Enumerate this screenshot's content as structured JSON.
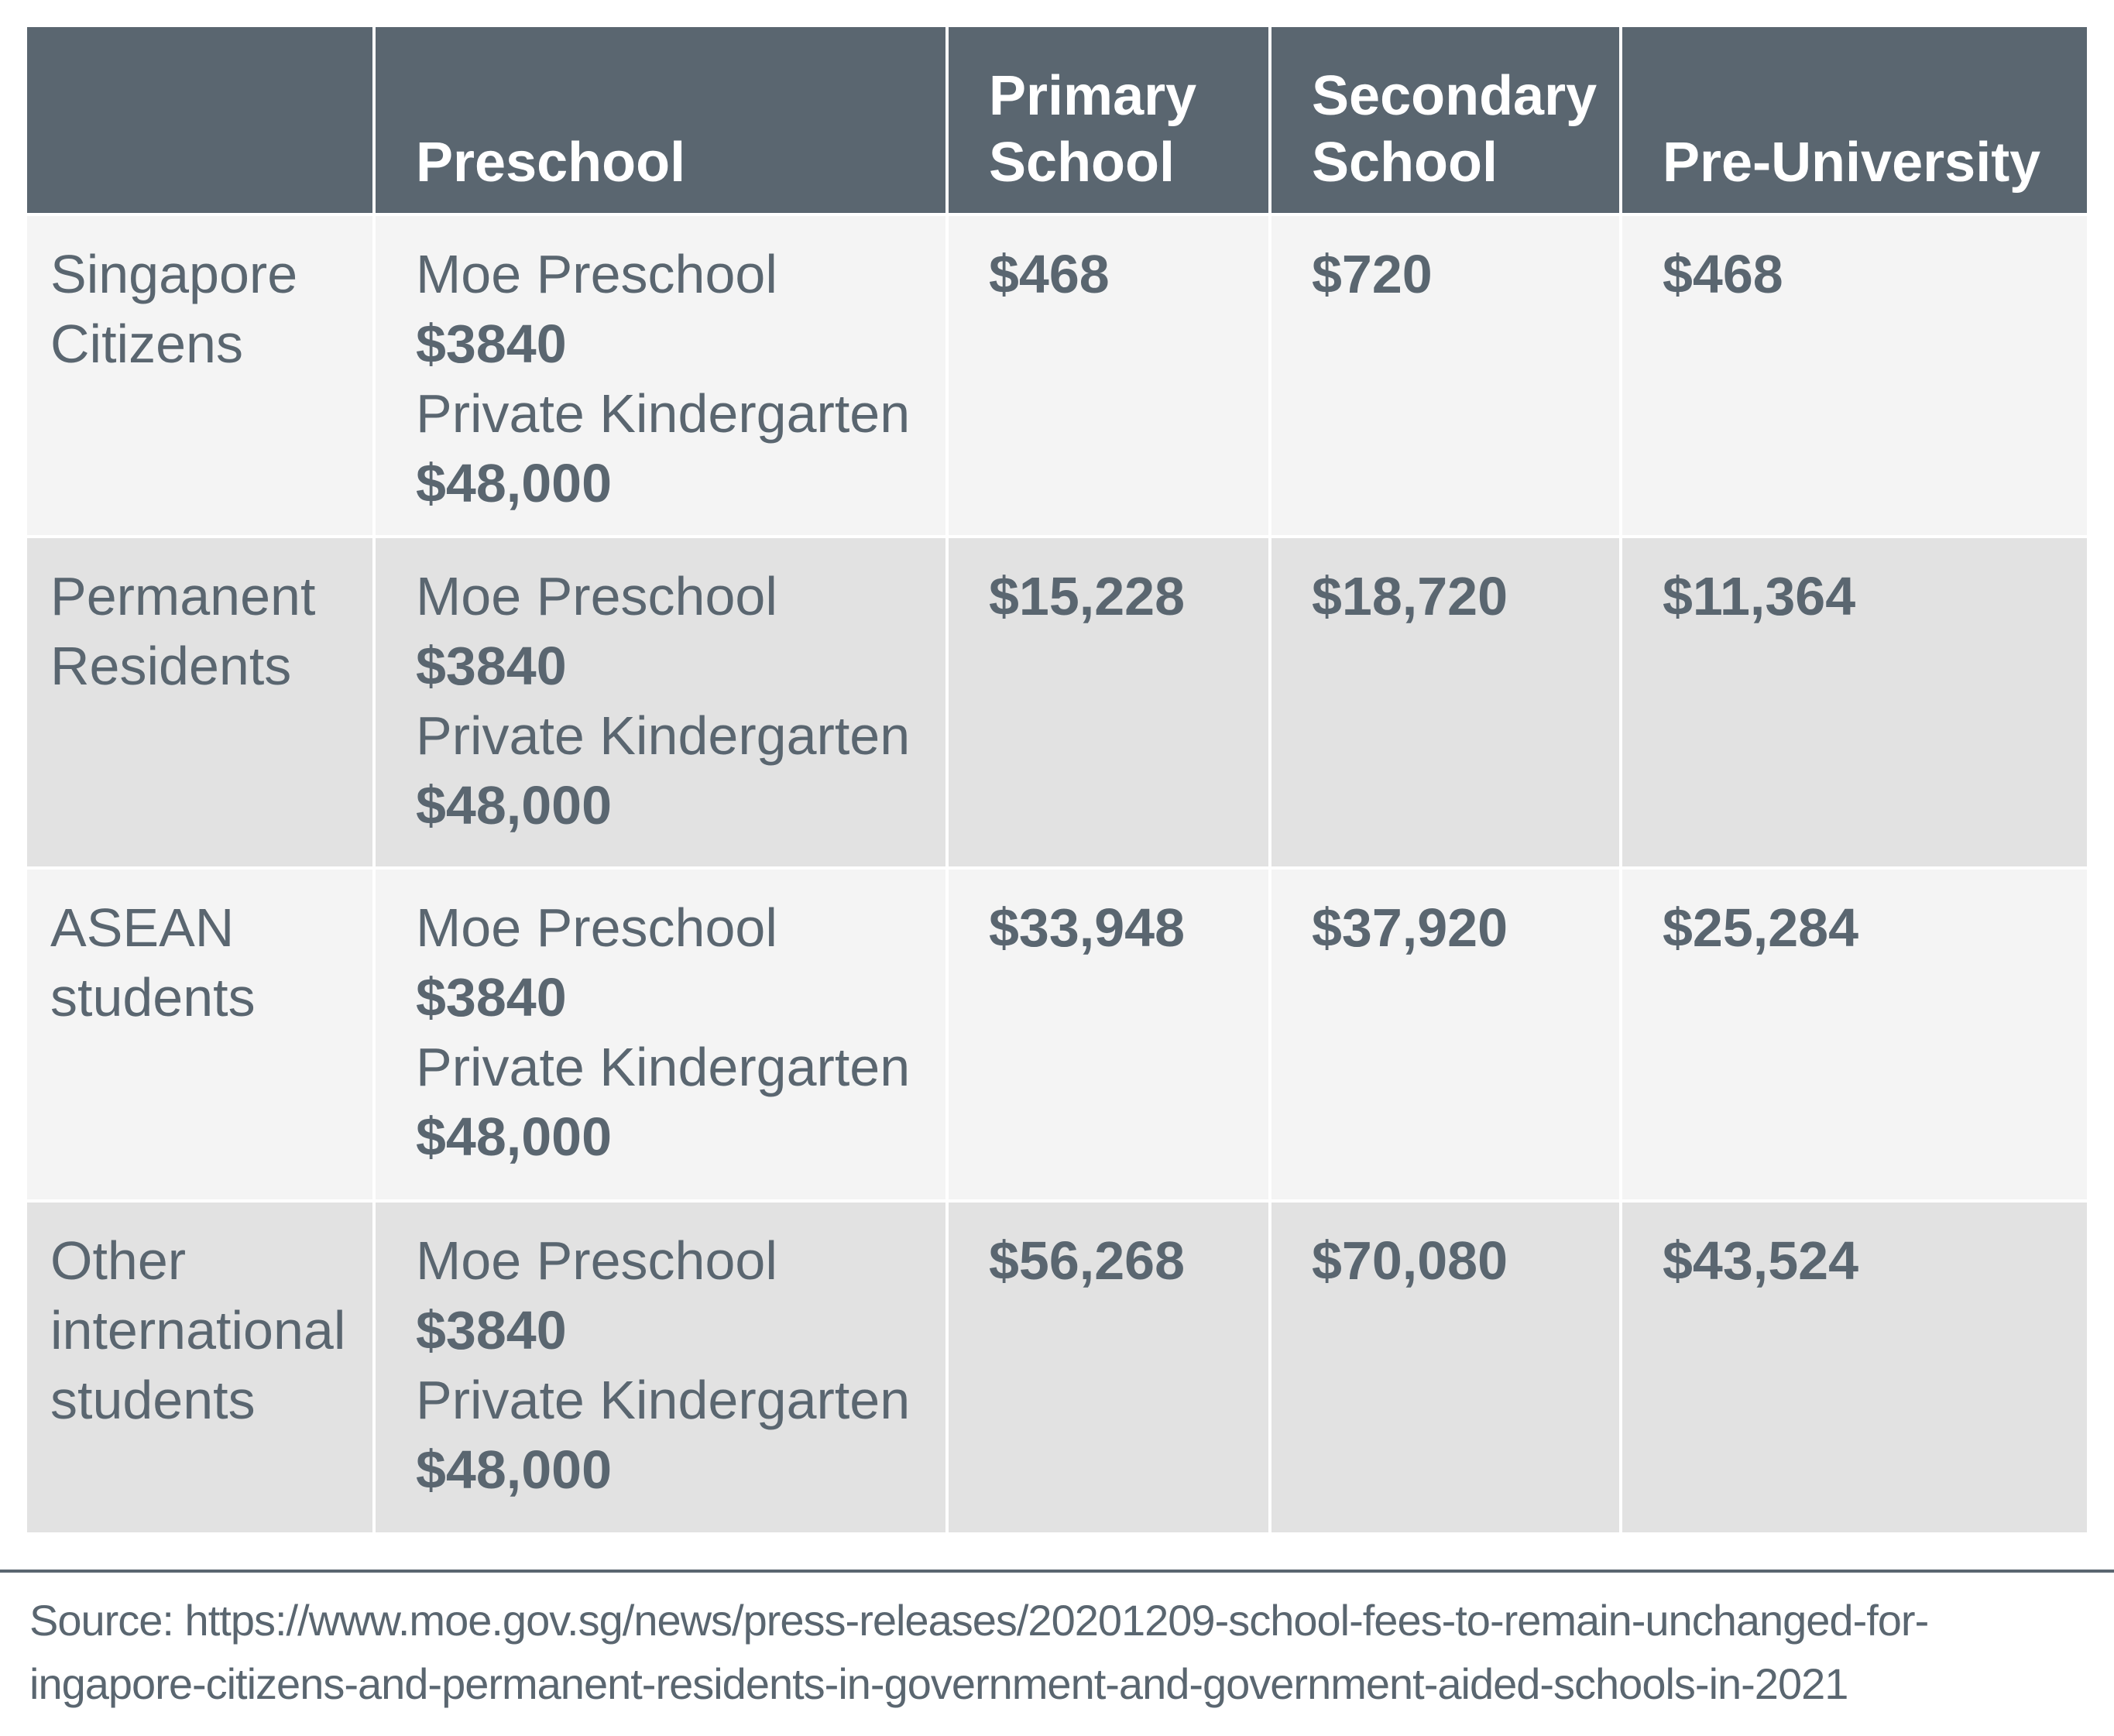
{
  "table": {
    "headers": [
      "",
      "Preschool",
      "Primary School",
      "Secondary School",
      "Pre-University"
    ],
    "header_lines": [
      [
        ""
      ],
      [
        "Preschool"
      ],
      [
        "Primary",
        "School"
      ],
      [
        "Secondary",
        "School"
      ],
      [
        "Pre-University"
      ]
    ],
    "rows": [
      {
        "group_lines": [
          "Singapore",
          "Citizens"
        ],
        "preschool": {
          "moe_label": "Moe Preschool",
          "moe_fee": "$3840",
          "private_label": "Private Kindergarten",
          "private_fee": "$48,000"
        },
        "primary": "$468",
        "secondary": "$720",
        "pre_university": "$468"
      },
      {
        "group_lines": [
          "Permanent",
          "Residents"
        ],
        "preschool": {
          "moe_label": "Moe Preschool",
          "moe_fee": "$3840",
          "private_label": "Private Kindergarten",
          "private_fee": "$48,000"
        },
        "primary": "$15,228",
        "secondary": "$18,720",
        "pre_university": "$11,364"
      },
      {
        "group_lines": [
          "ASEAN",
          "students"
        ],
        "preschool": {
          "moe_label": "Moe Preschool",
          "moe_fee": "$3840",
          "private_label": "Private Kindergarten",
          "private_fee": "$48,000"
        },
        "primary": "$33,948",
        "secondary": "$37,920",
        "pre_university": "$25,284"
      },
      {
        "group_lines": [
          "Other",
          "international",
          "students"
        ],
        "preschool": {
          "moe_label": "Moe Preschool",
          "moe_fee": "$3840",
          "private_label": "Private Kindergarten",
          "private_fee": "$48,000"
        },
        "primary": "$56,268",
        "secondary": "$70,080",
        "pre_university": "$43,524"
      }
    ]
  },
  "source": {
    "line1": "Source: https://www.moe.gov.sg/news/press-releases/20201209-school-fees-to-remain-unchanged-for-",
    "line2": "ingapore-citizens-and-permanent-residents-in-government-and-government-aided-schools-in-2021"
  },
  "colors": {
    "header_bg": "#5a6670",
    "header_text": "#ffffff",
    "row_light": "#f4f4f4",
    "row_dark": "#e2e2e2",
    "body_text": "#5a6670"
  }
}
